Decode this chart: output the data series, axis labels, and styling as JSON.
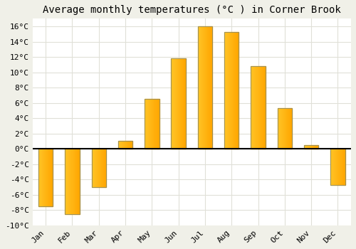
{
  "title": "Average monthly temperatures (°C ) in Corner Brook",
  "months": [
    "Jan",
    "Feb",
    "Mar",
    "Apr",
    "May",
    "Jun",
    "Jul",
    "Aug",
    "Sep",
    "Oct",
    "Nov",
    "Dec"
  ],
  "values": [
    -7.5,
    -8.5,
    -5.0,
    1.0,
    6.5,
    11.8,
    16.0,
    15.3,
    10.8,
    5.3,
    0.5,
    -4.7
  ],
  "bar_color_top": "#FFB733",
  "bar_color_bottom": "#FF9500",
  "bar_edge_color": "#888866",
  "ylim": [
    -10,
    17
  ],
  "yticks": [
    -10,
    -8,
    -6,
    -4,
    -2,
    0,
    2,
    4,
    6,
    8,
    10,
    12,
    14,
    16
  ],
  "ytick_labels": [
    "-10°C",
    "-8°C",
    "-6°C",
    "-4°C",
    "-2°C",
    "0°C",
    "2°C",
    "4°C",
    "6°C",
    "8°C",
    "10°C",
    "12°C",
    "14°C",
    "16°C"
  ],
  "plot_bg_color": "#ffffff",
  "fig_bg_color": "#f0f0e8",
  "grid_color": "#e0e0d8",
  "title_fontsize": 10,
  "tick_fontsize": 8
}
